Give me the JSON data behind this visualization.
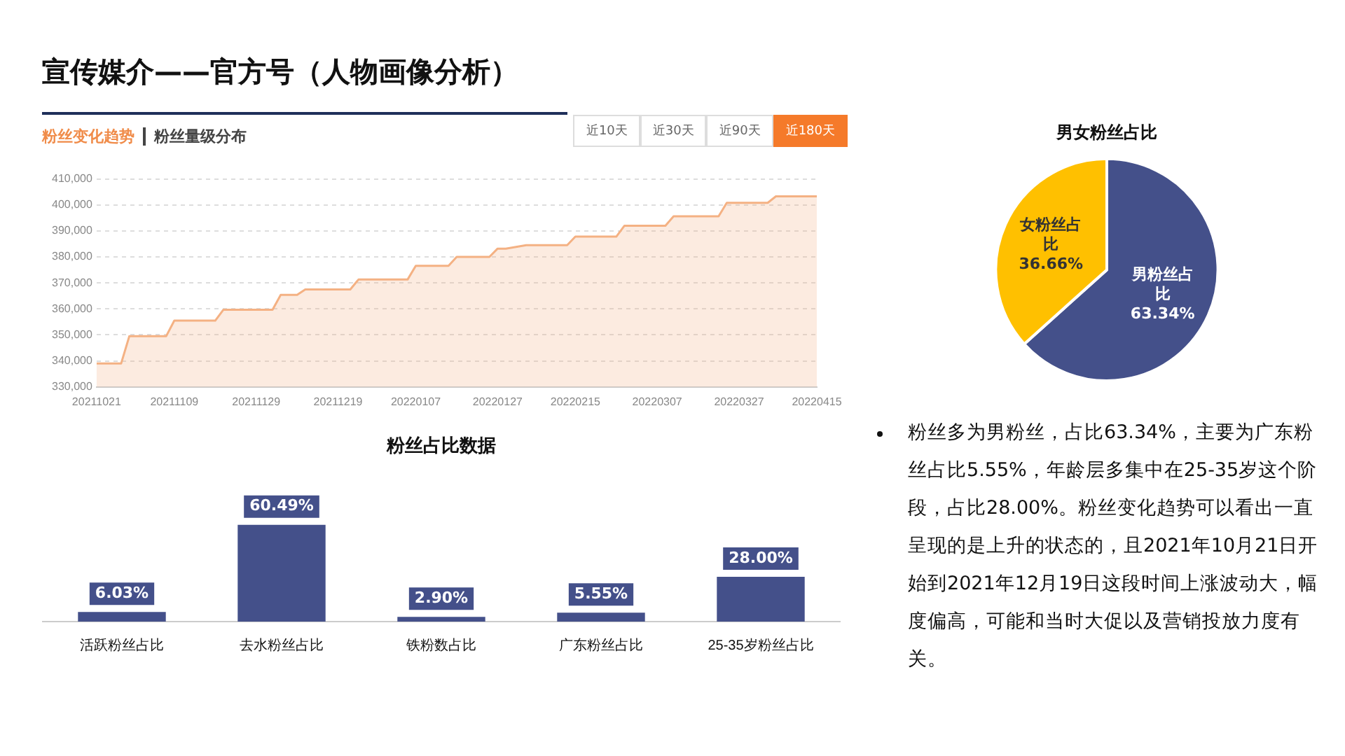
{
  "chart_data": [
    {
      "type": "area",
      "annotations": [
        "粉丝变化趋势",
        "粉丝量级分布",
        "近10天",
        "近30天",
        "近90天",
        "近180天"
      ],
      "x": [
        "2021-10-21",
        "2021-10-27",
        "2021-10-29",
        "2021-11-07",
        "2021-11-09",
        "2021-11-19",
        "2021-11-21",
        "2021-12-03",
        "2021-12-05",
        "2021-12-09",
        "2021-12-11",
        "2021-12-22",
        "2021-12-24",
        "2022-01-05",
        "2022-01-07",
        "2022-01-15",
        "2022-01-17",
        "2022-01-25",
        "2022-01-27",
        "2022-01-29",
        "2022-02-03",
        "2022-02-13",
        "2022-02-15",
        "2022-02-25",
        "2022-02-27",
        "2022-03-09",
        "2022-03-11",
        "2022-03-22",
        "2022-03-24",
        "2022-04-03",
        "2022-04-05",
        "2022-04-15"
      ],
      "values": [
        339000,
        339000,
        349500,
        349500,
        355500,
        355500,
        359700,
        359700,
        365400,
        365400,
        367500,
        367500,
        371300,
        371300,
        376600,
        376600,
        380000,
        380000,
        383200,
        383200,
        384500,
        384500,
        387800,
        387800,
        392000,
        392000,
        395600,
        395600,
        400800,
        400800,
        403300,
        403300
      ],
      "color": "#f4b183",
      "xlim": [
        "2021-10-21",
        "2022-04-15"
      ],
      "xticks": [
        {
          "value": "2021-10-21",
          "label": "20211021"
        },
        {
          "value": "2021-11-09",
          "label": "20211109"
        },
        {
          "value": "2021-11-29",
          "label": "20211129"
        },
        {
          "value": "2021-12-19",
          "label": "20211219"
        },
        {
          "value": "2022-01-07",
          "label": "20220107"
        },
        {
          "value": "2022-01-27",
          "label": "20220127"
        },
        {
          "value": "2022-02-15",
          "label": "20220215"
        },
        {
          "value": "2022-03-07",
          "label": "20220307"
        },
        {
          "value": "2022-03-27",
          "label": "20220327"
        },
        {
          "value": "2022-04-15",
          "label": "20220415"
        }
      ],
      "ylim": [
        330000,
        410000
      ],
      "yticks": [
        {
          "value": 330000,
          "label": "330,000"
        },
        {
          "value": 340000,
          "label": "340,000"
        },
        {
          "value": 350000,
          "label": "350,000"
        },
        {
          "value": 360000,
          "label": "360,000"
        },
        {
          "value": 370000,
          "label": "370,000"
        },
        {
          "value": 380000,
          "label": "380,000"
        },
        {
          "value": 390000,
          "label": "390,000"
        },
        {
          "value": 400000,
          "label": "400,000"
        },
        {
          "value": 410000,
          "label": "410,000"
        }
      ],
      "grid": "y"
    },
    {
      "type": "bar",
      "title": "粉丝占比数据",
      "categories": [
        "活跃粉丝占比",
        "去水粉丝占比",
        "铁粉数占比",
        "广东粉丝占比",
        "25-35岁粉丝占比"
      ],
      "values": [
        6.03,
        60.49,
        2.9,
        5.55,
        28.0
      ],
      "value_labels": [
        "6.03%",
        "60.49%",
        "2.90%",
        "5.55%",
        "28.00%"
      ],
      "color": "#44508a",
      "tick_labels": "x"
    },
    {
      "type": "pie",
      "title": "男女粉丝占比",
      "categories": [
        "男粉丝占比",
        "女粉丝占比"
      ],
      "values": [
        63.34,
        36.66
      ],
      "colors": [
        "#44508a",
        "#ffc000"
      ],
      "value_labels": [
        "63.34%",
        "36.66%"
      ]
    },
    {
      "type": "other",
      "title": "宣传媒介——官方号（人物画像分析）"
    },
    {
      "type": "other",
      "annotations": [
        "粉丝多为男粉丝，占比63.34%，主要为广东粉丝占比5.55%，年龄层多集中在25-35岁这个阶段，占比28.00%。粉丝变化趋势可以看出一直呈现的是上升的状态的，且2021年10月21日开始到2021年12月19日这段时间上涨波动大，幅度偏高，可能和当时大促以及营销投放力度有关。"
      ]
    }
  ]
}
